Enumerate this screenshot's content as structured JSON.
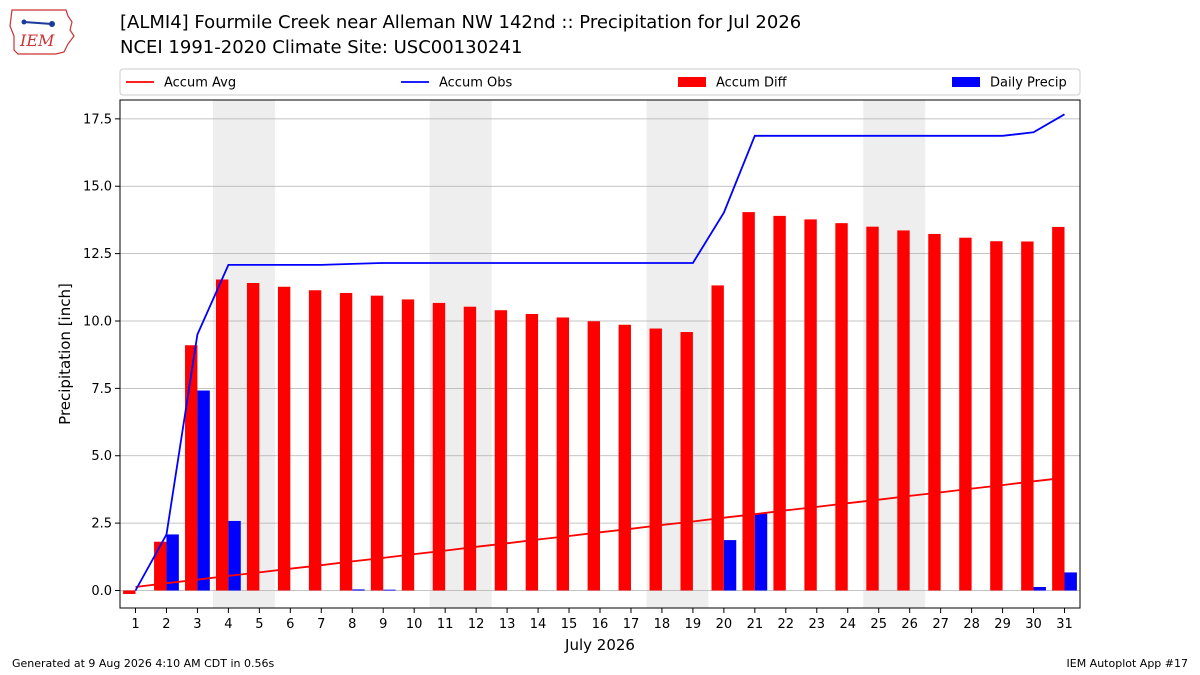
{
  "header": {
    "title": "[ALMI4] Fourmile Creek near Alleman NW 142nd :: Precipitation for Jul 2026",
    "subtitle": "NCEI 1991-2020 Climate Site: USC00130241",
    "logo_text": "IEM"
  },
  "footer": {
    "generated": "Generated at 9 Aug 2026 4:10 AM CDT in 0.56s",
    "app": "IEM Autoplot App #17"
  },
  "colors": {
    "accum_avg": "#ff0000",
    "accum_obs": "#0000ff",
    "accum_diff": "#ff0000",
    "daily_precip": "#0000ff",
    "weekend_shade": "#eeeeee",
    "grid": "#b0b0b0"
  },
  "chart_data": {
    "type": "bar",
    "xlabel": "July 2026",
    "ylabel": "Precipitation [inch]",
    "ylim": [
      -0.65,
      18.2
    ],
    "xlim": [
      0.5,
      31.5
    ],
    "yticks": [
      "0.0",
      "2.5",
      "5.0",
      "7.5",
      "10.0",
      "12.5",
      "15.0",
      "17.5"
    ],
    "ytick_values": [
      0,
      2.5,
      5,
      7.5,
      10,
      12.5,
      15,
      17.5
    ],
    "categories": [
      "1",
      "2",
      "3",
      "4",
      "5",
      "6",
      "7",
      "8",
      "9",
      "10",
      "11",
      "12",
      "13",
      "14",
      "15",
      "16",
      "17",
      "18",
      "19",
      "20",
      "21",
      "22",
      "23",
      "24",
      "25",
      "26",
      "27",
      "28",
      "29",
      "30",
      "31"
    ],
    "legend": {
      "placement": "top",
      "entries": [
        "Accum Avg",
        "Accum Obs",
        "Accum Diff",
        "Daily Precip"
      ]
    },
    "grid": "horizontal",
    "shaded_weekends": [
      [
        4,
        5
      ],
      [
        11,
        12
      ],
      [
        18,
        19
      ],
      [
        25,
        26
      ]
    ],
    "series": [
      {
        "name": "Accum Avg",
        "kind": "line",
        "values": [
          0.13,
          0.27,
          0.4,
          0.54,
          0.67,
          0.81,
          0.94,
          1.08,
          1.21,
          1.35,
          1.48,
          1.62,
          1.75,
          1.89,
          2.02,
          2.16,
          2.29,
          2.43,
          2.56,
          2.7,
          2.83,
          2.97,
          3.1,
          3.24,
          3.37,
          3.51,
          3.64,
          3.78,
          3.91,
          4.05,
          4.18
        ]
      },
      {
        "name": "Accum Obs",
        "kind": "line",
        "values": [
          0.0,
          2.08,
          9.5,
          12.08,
          12.08,
          12.08,
          12.08,
          12.12,
          12.15,
          12.15,
          12.15,
          12.15,
          12.15,
          12.15,
          12.15,
          12.15,
          12.15,
          12.15,
          12.15,
          14.02,
          16.87,
          16.87,
          16.87,
          16.87,
          16.87,
          16.87,
          16.87,
          16.87,
          16.87,
          17.0,
          17.67
        ]
      },
      {
        "name": "Accum Diff",
        "kind": "bar",
        "values": [
          -0.13,
          1.81,
          9.1,
          11.54,
          11.41,
          11.27,
          11.14,
          11.04,
          10.94,
          10.8,
          10.67,
          10.53,
          10.4,
          10.26,
          10.13,
          9.99,
          9.86,
          9.72,
          9.59,
          11.32,
          14.04,
          13.9,
          13.77,
          13.63,
          13.5,
          13.36,
          13.23,
          13.09,
          12.96,
          12.95,
          13.49
        ]
      },
      {
        "name": "Daily Precip",
        "kind": "bar",
        "values": [
          0.0,
          2.08,
          7.42,
          2.58,
          0.0,
          0.0,
          0.0,
          0.04,
          0.03,
          0.0,
          0.0,
          0.0,
          0.0,
          0.0,
          0.0,
          0.0,
          0.0,
          0.0,
          0.0,
          1.87,
          2.85,
          0.0,
          0.0,
          0.0,
          0.0,
          0.0,
          0.0,
          0.0,
          0.0,
          0.13,
          0.67
        ]
      }
    ]
  }
}
